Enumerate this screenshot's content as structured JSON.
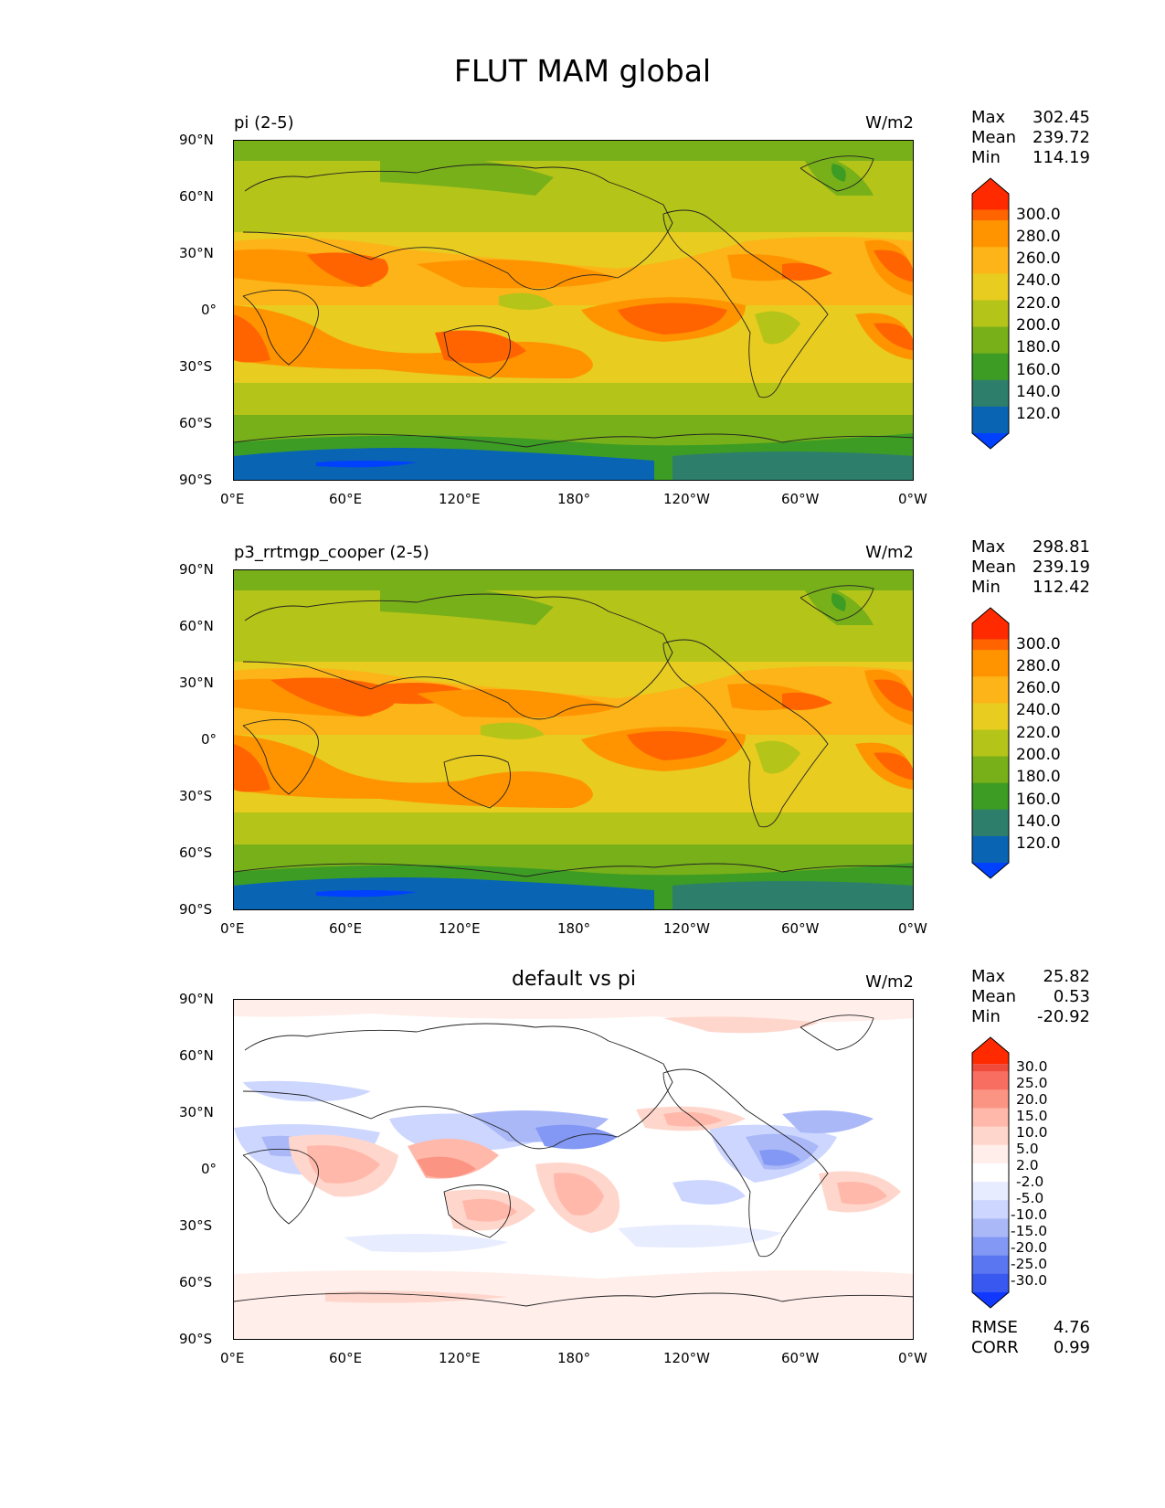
{
  "figure": {
    "title": "FLUT MAM global"
  },
  "axes": {
    "lat_labels": [
      "90°N",
      "60°N",
      "30°N",
      "0°",
      "30°S",
      "60°S",
      "90°S"
    ],
    "lon_labels": [
      "0°E",
      "60°E",
      "120°E",
      "180°",
      "120°W",
      "60°W",
      "0°W"
    ]
  },
  "panels": [
    {
      "title": "pi (2-5)",
      "units": "W/m2",
      "stats": [
        {
          "label": "Max",
          "value": "302.45"
        },
        {
          "label": "Mean",
          "value": "239.72"
        },
        {
          "label": "Min",
          "value": "114.19"
        }
      ],
      "colorbar": {
        "levels": [
          "300.0",
          "280.0",
          "260.0",
          "240.0",
          "220.0",
          "200.0",
          "180.0",
          "160.0",
          "140.0",
          "120.0"
        ],
        "colors": [
          "#ff2a00",
          "#ff6400",
          "#ff9400",
          "#fcb418",
          "#e8cc20",
          "#b4c418",
          "#78b01a",
          "#3c9c24",
          "#2e7e6c",
          "#0a64b4",
          "#0040ff"
        ]
      }
    },
    {
      "title": "p3_rrtmgp_cooper (2-5)",
      "units": "W/m2",
      "stats": [
        {
          "label": "Max",
          "value": "298.81"
        },
        {
          "label": "Mean",
          "value": "239.19"
        },
        {
          "label": "Min",
          "value": "112.42"
        }
      ],
      "colorbar": {
        "levels": [
          "300.0",
          "280.0",
          "260.0",
          "240.0",
          "220.0",
          "200.0",
          "180.0",
          "160.0",
          "140.0",
          "120.0"
        ],
        "colors": [
          "#ff2a00",
          "#ff6400",
          "#ff9400",
          "#fcb418",
          "#e8cc20",
          "#b4c418",
          "#78b01a",
          "#3c9c24",
          "#2e7e6c",
          "#0a64b4",
          "#0040ff"
        ]
      }
    },
    {
      "title": "default vs pi",
      "units": "W/m2",
      "stats": [
        {
          "label": "Max",
          "value": "25.82"
        },
        {
          "label": "Mean",
          "value": "0.53"
        },
        {
          "label": "Min",
          "value": "-20.92"
        }
      ],
      "extra_stats": [
        {
          "label": "RMSE",
          "value": "4.76"
        },
        {
          "label": "CORR",
          "value": "0.99"
        }
      ],
      "colorbar": {
        "levels": [
          "30.0",
          "25.0",
          "20.0",
          "15.0",
          "10.0",
          "5.0",
          "2.0",
          "-2.0",
          "-5.0",
          "-10.0",
          "-15.0",
          "-20.0",
          "-25.0",
          "-30.0"
        ],
        "colors": [
          "#ff2a00",
          "#f04a3a",
          "#f86e60",
          "#fc9484",
          "#ffb8aa",
          "#ffd6cc",
          "#ffeeea",
          "#ffffff",
          "#e8ecff",
          "#ccd6ff",
          "#aab8f8",
          "#8298f4",
          "#5a76f0",
          "#3858f0",
          "#1038ff"
        ]
      }
    }
  ]
}
